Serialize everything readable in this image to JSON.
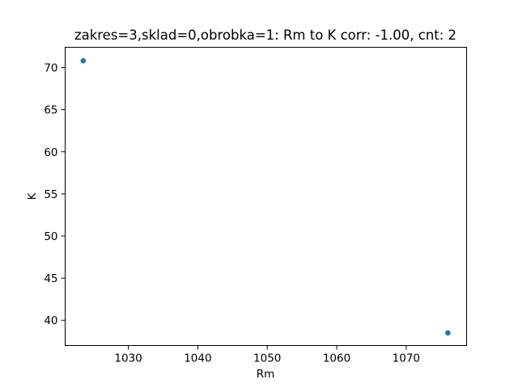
{
  "chart_data": {
    "type": "scatter",
    "title": "zakres=3,sklad=0,obrobka=1: Rm to K corr: -1.00, cnt: 2",
    "xlabel": "Rm",
    "ylabel": "K",
    "xlim": [
      1020.9,
      1078.7
    ],
    "ylim": [
      37.0,
      72.4
    ],
    "x_ticks": [
      1030,
      1040,
      1050,
      1060,
      1070
    ],
    "y_ticks": [
      40,
      45,
      50,
      55,
      60,
      65,
      70
    ],
    "grid": false,
    "marker_color": "#1f77b4",
    "series": [
      {
        "x": [
          1023.5,
          1076.0
        ],
        "y": [
          70.8,
          38.5
        ]
      }
    ]
  }
}
